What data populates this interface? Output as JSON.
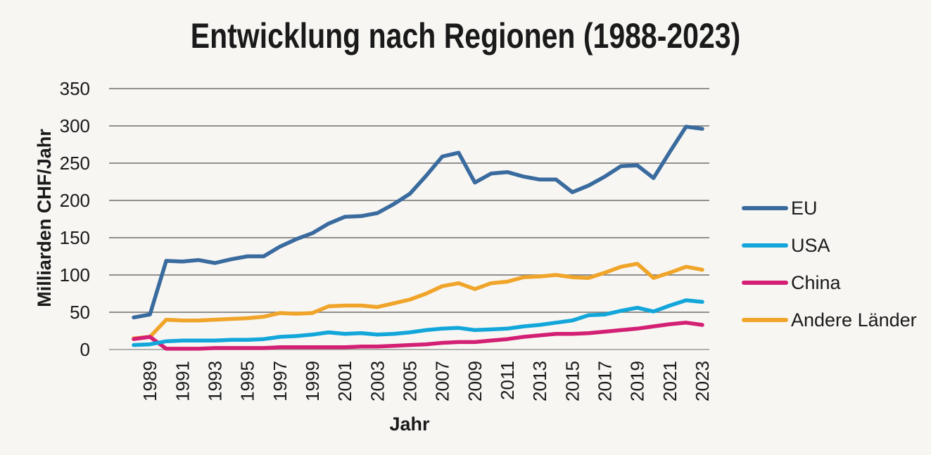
{
  "chart_data": {
    "type": "line",
    "title": "Entwicklung nach Regionen (1988-2023)",
    "xlabel": "Jahr",
    "ylabel": "Milliarden CHF/Jahr",
    "ylim": [
      0,
      350
    ],
    "yticks": [
      "0",
      "50",
      "100",
      "150",
      "200",
      "250",
      "300",
      "350"
    ],
    "xticks": [
      "1989",
      "1991",
      "1993",
      "1995",
      "1997",
      "1999",
      "2001",
      "2003",
      "2005",
      "2007",
      "2009",
      "2011",
      "2013",
      "2015",
      "2017",
      "2019",
      "2021",
      "2023"
    ],
    "grid": true,
    "legend_position": "right",
    "x": [
      1988,
      1989,
      1990,
      1991,
      1992,
      1993,
      1994,
      1995,
      1996,
      1997,
      1998,
      1999,
      2000,
      2001,
      2002,
      2003,
      2004,
      2005,
      2006,
      2007,
      2008,
      2009,
      2010,
      2011,
      2012,
      2013,
      2014,
      2015,
      2016,
      2017,
      2018,
      2019,
      2020,
      2021,
      2022,
      2023
    ],
    "series": [
      {
        "name": "EU",
        "color": "#3a6b9e",
        "values": [
          43,
          47,
          119,
          118,
          120,
          116,
          121,
          125,
          125,
          138,
          148,
          156,
          169,
          178,
          179,
          183,
          195,
          209,
          233,
          259,
          264,
          224,
          236,
          238,
          232,
          228,
          228,
          211,
          220,
          232,
          246,
          247,
          230,
          265,
          299,
          296
        ]
      },
      {
        "name": "USA",
        "color": "#13a6da",
        "values": [
          6,
          7,
          11,
          12,
          12,
          12,
          13,
          13,
          14,
          17,
          18,
          20,
          23,
          21,
          22,
          20,
          21,
          23,
          26,
          28,
          29,
          26,
          27,
          28,
          31,
          33,
          36,
          39,
          46,
          47,
          52,
          56,
          51,
          59,
          66,
          64
        ]
      },
      {
        "name": "China",
        "color": "#d31f74",
        "values": [
          14,
          17,
          1,
          1,
          1,
          2,
          2,
          2,
          2,
          3,
          3,
          3,
          3,
          3,
          4,
          4,
          5,
          6,
          7,
          9,
          10,
          10,
          12,
          14,
          17,
          19,
          21,
          21,
          22,
          24,
          26,
          28,
          31,
          34,
          36,
          33
        ]
      },
      {
        "name": "Andere Länder",
        "color": "#f0a52a",
        "values": [
          15,
          17,
          40,
          39,
          39,
          40,
          41,
          42,
          44,
          49,
          48,
          49,
          58,
          59,
          59,
          57,
          62,
          67,
          75,
          85,
          89,
          81,
          89,
          91,
          97,
          98,
          100,
          97,
          96,
          103,
          111,
          115,
          96,
          103,
          111,
          107
        ]
      }
    ]
  }
}
